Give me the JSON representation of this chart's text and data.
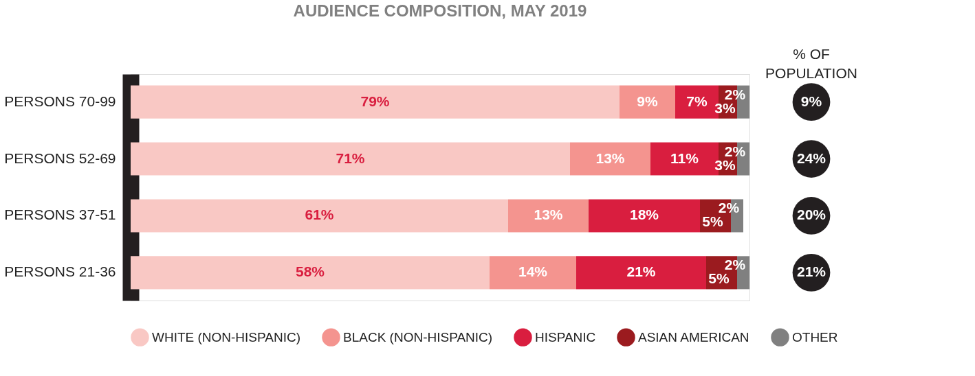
{
  "chart_data": {
    "type": "bar",
    "orientation": "horizontal",
    "stacked": true,
    "legend": "bottom",
    "grid": false,
    "title": "AUDIENCE COMPOSITION, MAY 2019",
    "categories": [
      "PERSONS 70-99",
      "PERSONS 52-69",
      "PERSONS 37-51",
      "PERSONS 21-36"
    ],
    "series": [
      {
        "name": "WHITE (NON-HISPANIC)",
        "color": "#f9c8c4",
        "values": [
          79,
          71,
          61,
          58
        ],
        "value_labels": [
          "79%",
          "71%",
          "61%",
          "58%"
        ]
      },
      {
        "name": "BLACK (NON-HISPANIC)",
        "color": "#f4948f",
        "values": [
          9,
          13,
          13,
          14
        ],
        "value_labels": [
          "9%",
          "13%",
          "13%",
          "14%"
        ]
      },
      {
        "name": "HISPANIC",
        "color": "#d91e3f",
        "values": [
          7,
          11,
          18,
          21
        ],
        "value_labels": [
          "7%",
          "11%",
          "18%",
          "21%"
        ]
      },
      {
        "name": "ASIAN AMERICAN",
        "color": "#9b1b1f",
        "values": [
          3,
          3,
          5,
          5
        ],
        "value_labels": [
          "3%",
          "3%",
          "5%",
          "5%"
        ]
      },
      {
        "name": "OTHER",
        "color": "#808080",
        "values": [
          2,
          2,
          2,
          2
        ],
        "value_labels": [
          "2%",
          "2%",
          "2%",
          "2%"
        ]
      }
    ],
    "annotations": [
      "% OF POPULATION",
      "9%",
      "24%",
      "20%",
      "21%"
    ]
  }
}
